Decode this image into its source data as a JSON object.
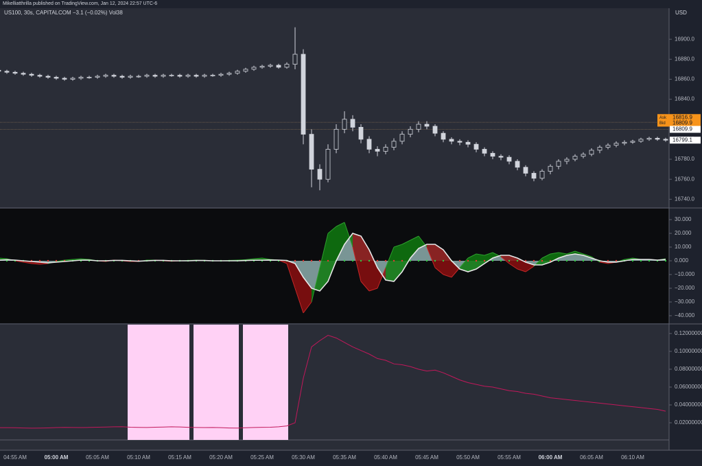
{
  "header": {
    "attribution": "Mikelliatthrilla published on TradingView.com, Jan 12, 2024 22:57 UTC-6"
  },
  "chart_data": [
    {
      "type": "candlestick",
      "title": "US100, 30s, CAPITALCOM  −3.1 (−0.02%)  Vol38",
      "currency": "USD",
      "categories": [
        null,
        null,
        "04:55 AM",
        null,
        null,
        null,
        null,
        "05:00 AM",
        null,
        null,
        null,
        null,
        "05:05 AM",
        null,
        null,
        null,
        null,
        "05:10 AM",
        null,
        null,
        null,
        null,
        "05:15 AM",
        null,
        null,
        null,
        null,
        "05:20 AM",
        null,
        null,
        null,
        null,
        "05:25 AM",
        null,
        null,
        null,
        null,
        "05:30 AM",
        null,
        null,
        null,
        null,
        "05:35 AM",
        null,
        null,
        null,
        null,
        "05:40 AM",
        null,
        null,
        null,
        null,
        "05:45 AM",
        null,
        null,
        null,
        null,
        "05:50 AM",
        null,
        null,
        null,
        null,
        "05:55 AM",
        null,
        null,
        null,
        null,
        "06:00 AM",
        null,
        null,
        null,
        null,
        "06:05 AM",
        null,
        null,
        null,
        null,
        "06:10 AM",
        null,
        null,
        null,
        null
      ],
      "bold_ticks": [
        7,
        67
      ],
      "open": [
        16869,
        16868,
        16867,
        16866,
        16865,
        16864,
        16863,
        16862,
        16861,
        16860,
        16861,
        16862,
        16862,
        16863,
        16864,
        16863,
        16862,
        16863,
        16863,
        16864,
        16863,
        16864,
        16864,
        16863,
        16864,
        16863,
        16864,
        16864,
        16865,
        16866,
        16868,
        16870,
        16872,
        16873,
        16874,
        16872,
        16875,
        16885,
        16805,
        16770,
        16760,
        16790,
        16810,
        16820,
        16812,
        16800,
        16790,
        16788,
        16792,
        16798,
        16805,
        16810,
        16815,
        16813,
        16806,
        16800,
        16798,
        16797,
        16795,
        16790,
        16786,
        16783,
        16782,
        16778,
        16772,
        16766,
        16761,
        16768,
        16773,
        16778,
        16780,
        16783,
        16785,
        16789,
        16792,
        16794,
        16796,
        16797,
        16798,
        16800,
        16801,
        16800
      ],
      "high": [
        16870.5,
        16869.5,
        16868.5,
        16867.5,
        16866.5,
        16865.5,
        16864.5,
        16863.5,
        16862.5,
        16862.5,
        16863.5,
        16863.5,
        16864.5,
        16865.5,
        16865.5,
        16864.5,
        16864.5,
        16864.5,
        16865.5,
        16865.5,
        16865.5,
        16865.5,
        16865.5,
        16865.5,
        16865.5,
        16865.5,
        16865.5,
        16866.5,
        16867.5,
        16869.5,
        16871.5,
        16873.5,
        16874.5,
        16875.5,
        16875.5,
        16877,
        16912,
        16890,
        16810,
        16775,
        16795,
        16815,
        16828,
        16824,
        16815,
        16803,
        16793,
        16795,
        16801,
        16808,
        16813,
        16818,
        16818,
        16815,
        16808,
        16802,
        16800,
        16799,
        16797,
        16792,
        16788,
        16785,
        16784,
        16780,
        16774,
        16768,
        16770,
        16775,
        16780,
        16782,
        16785,
        16787,
        16791,
        16794,
        16796,
        16798,
        16799,
        16799.5,
        16801.5,
        16802.5,
        16802.5,
        16801.5
      ],
      "low": [
        16866.5,
        16865.5,
        16864.5,
        16863.5,
        16862.5,
        16861.5,
        16860.5,
        16859.5,
        16858.5,
        16858.5,
        16859.5,
        16860.5,
        16860.5,
        16861.5,
        16861.5,
        16860.5,
        16860.5,
        16861.5,
        16861.5,
        16861.5,
        16861.5,
        16862.5,
        16861.5,
        16861.5,
        16861.5,
        16861.5,
        16862.5,
        16862.5,
        16863.5,
        16864.5,
        16866.5,
        16868.5,
        16870.5,
        16871.5,
        16870.5,
        16870.5,
        16870,
        16795,
        16752,
        16749,
        16757,
        16786,
        16806,
        16808,
        16796,
        16786,
        16783,
        16785,
        16789,
        16795,
        16802,
        16807,
        16810,
        16803,
        16797,
        16795,
        16794,
        16792,
        16787,
        16783,
        16780,
        16779,
        16775,
        16769,
        16763,
        16758,
        16759,
        16765,
        16770,
        16775,
        16778,
        16781,
        16783,
        16786,
        16790,
        16792,
        16794,
        16795.5,
        16796.5,
        16798.5,
        16798.5,
        16797.5
      ],
      "close": [
        16868,
        16867,
        16866,
        16865,
        16864,
        16863,
        16862,
        16861,
        16860,
        16861,
        16862,
        16862,
        16863,
        16864,
        16863,
        16862,
        16863,
        16863,
        16864,
        16863,
        16864,
        16864,
        16863,
        16864,
        16863,
        16864,
        16864,
        16865,
        16866,
        16868,
        16870,
        16872,
        16873,
        16874,
        16872,
        16875,
        16885,
        16805,
        16770,
        16760,
        16790,
        16810,
        16820,
        16812,
        16800,
        16790,
        16788,
        16792,
        16798,
        16805,
        16810,
        16815,
        16813,
        16806,
        16800,
        16798,
        16797,
        16795,
        16790,
        16786,
        16783,
        16782,
        16778,
        16772,
        16766,
        16761,
        16768,
        16773,
        16778,
        16780,
        16783,
        16785,
        16789,
        16792,
        16794,
        16796,
        16797,
        16798,
        16800,
        16801,
        16800,
        16799.1
      ],
      "up_color": "#d1d4dc",
      "down_color": "#d1d4dc",
      "ylim": [
        16732,
        16931
      ],
      "yticks": [
        {
          "value": 16740,
          "label": "16740.0"
        },
        {
          "value": 16760,
          "label": "16760.0"
        },
        {
          "value": 16780,
          "label": "16780.0"
        },
        {
          "value": 16800,
          "label": "16800.0"
        },
        {
          "value": 16820,
          "label": "16820.0"
        },
        {
          "value": 16840,
          "label": "16840.0"
        },
        {
          "value": 16860,
          "label": "16860.0"
        },
        {
          "value": 16880,
          "label": "16880.0"
        },
        {
          "value": 16900,
          "label": "16900.0"
        }
      ],
      "price_labels": [
        {
          "label": "Ask",
          "value": 16816.9,
          "color": "#f7931a"
        },
        {
          "label": "Bid",
          "value": 16809.9,
          "color": "#f7931a"
        },
        {
          "value": 16809.9,
          "color": "#ffffff"
        },
        {
          "value": 16799.1,
          "color": "#ffffff"
        }
      ]
    },
    {
      "type": "oscillator",
      "series": [
        {
          "color": "#089981",
          "up_color": "#0f7a0f",
          "down_color": "#8b0f0f",
          "line_up": "#2e9e2e",
          "line_down": "#c62828",
          "values": [
            2,
            1.5,
            0,
            -1,
            -2,
            -2.5,
            -2,
            -0.5,
            0.5,
            1,
            1.5,
            1,
            0,
            -0.5,
            0.5,
            0,
            -0.5,
            -0.5,
            0.5,
            0.5,
            0,
            -0.3,
            0,
            0.3,
            0.5,
            0.3,
            0,
            0,
            0.3,
            0.5,
            0.8,
            1.5,
            2,
            1,
            0.5,
            -2,
            -20,
            -38,
            -30,
            -5,
            20,
            25,
            28,
            10,
            -15,
            -22,
            -20,
            -5,
            10,
            12,
            15,
            18,
            10,
            -5,
            -10,
            -12,
            -5,
            2,
            5,
            4,
            6,
            3,
            -2,
            -6,
            -8,
            -4,
            2,
            5,
            6,
            5,
            7,
            5,
            3,
            -1,
            -2,
            -1,
            1,
            2,
            1,
            1,
            0.5,
            1.5
          ]
        },
        {
          "color": "#e8e8e8",
          "fill": "#9fc3c3",
          "zero_up": "#2ecc40",
          "zero_down": "#e53935",
          "values": [
            0.5,
            0.8,
            0.5,
            0,
            -0.5,
            -1,
            -1.5,
            -1,
            -0.5,
            0,
            0.5,
            0.5,
            0,
            0,
            0.3,
            0.3,
            0,
            -0.3,
            0,
            0.3,
            0.3,
            0,
            0,
            0,
            0.2,
            0.2,
            0,
            0,
            0,
            0,
            0.2,
            0.4,
            0.5,
            0.6,
            0.5,
            0.2,
            -2,
            -12,
            -20,
            -22,
            -15,
            0,
            12,
            20,
            18,
            8,
            -5,
            -14,
            -15,
            -8,
            2,
            9,
            12,
            12,
            8,
            0,
            -6,
            -8,
            -6,
            -2,
            2,
            4,
            4,
            2,
            -1,
            -3,
            -3,
            -1,
            2,
            4,
            5,
            4,
            2,
            0,
            -1,
            -1,
            0,
            1,
            1,
            1,
            0.5,
            1
          ]
        }
      ],
      "ylim": [
        -45,
        38
      ],
      "yticks": [
        {
          "value": -40,
          "label": "−40.000"
        },
        {
          "value": -30,
          "label": "−30.000"
        },
        {
          "value": -20,
          "label": "−20.000"
        },
        {
          "value": -10,
          "label": "−10.000"
        },
        {
          "value": 0,
          "label": "0.000"
        },
        {
          "value": 10,
          "label": "10.000"
        },
        {
          "value": 20,
          "label": "20.000"
        },
        {
          "value": 30,
          "label": "30.000"
        }
      ]
    },
    {
      "type": "line",
      "color": "#c2185b",
      "band_color": "#ffd1f5",
      "background_bands": [
        [
          16,
          23
        ],
        [
          24,
          29
        ],
        [
          30,
          35
        ]
      ],
      "values": [
        0.0145,
        0.0145,
        0.0144,
        0.0142,
        0.014,
        0.0141,
        0.0143,
        0.0146,
        0.0148,
        0.0147,
        0.0146,
        0.0148,
        0.015,
        0.0152,
        0.0155,
        0.0156,
        0.015,
        0.0148,
        0.0147,
        0.015,
        0.0152,
        0.0155,
        0.0153,
        0.0149,
        0.0147,
        0.0146,
        0.0147,
        0.0145,
        0.0142,
        0.0141,
        0.0144,
        0.0147,
        0.0149,
        0.015,
        0.0155,
        0.0165,
        0.02,
        0.07,
        0.105,
        0.112,
        0.118,
        0.115,
        0.11,
        0.105,
        0.101,
        0.097,
        0.092,
        0.09,
        0.086,
        0.085,
        0.083,
        0.08,
        0.078,
        0.079,
        0.076,
        0.072,
        0.068,
        0.065,
        0.063,
        0.061,
        0.06,
        0.058,
        0.056,
        0.055,
        0.053,
        0.052,
        0.05,
        0.048,
        0.047,
        0.046,
        0.045,
        0.044,
        0.043,
        0.042,
        0.041,
        0.04,
        0.039,
        0.038,
        0.037,
        0.036,
        0.035,
        0.033
      ],
      "ylim": [
        0.0008,
        0.1292
      ],
      "yticks": [
        {
          "value": 0.02,
          "label": "0.02000000"
        },
        {
          "value": 0.04,
          "label": "0.04000000"
        },
        {
          "value": 0.06,
          "label": "0.06000000"
        },
        {
          "value": 0.08,
          "label": "0.08000000"
        },
        {
          "value": 0.1,
          "label": "0.10000000"
        },
        {
          "value": 0.12,
          "label": "0.12000000"
        }
      ]
    }
  ]
}
